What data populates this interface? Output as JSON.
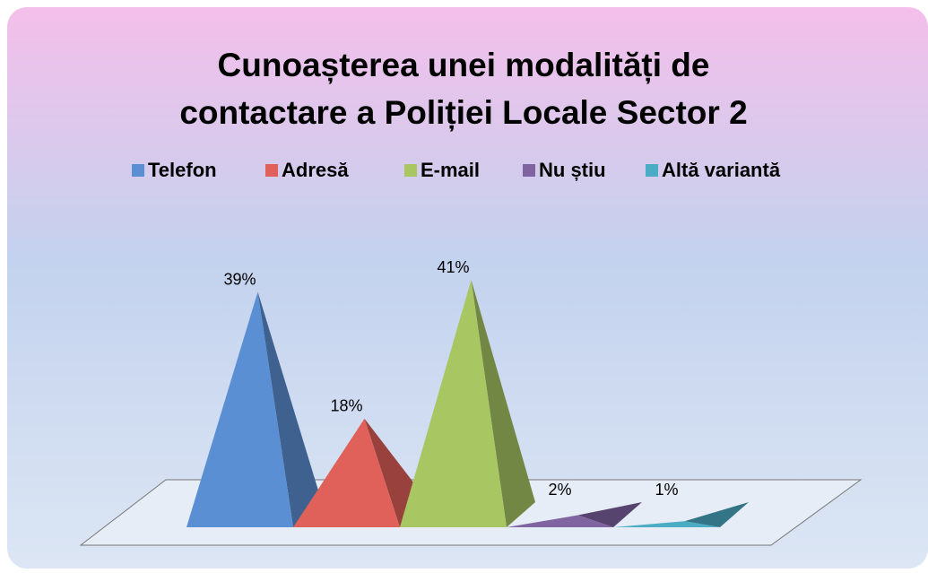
{
  "chart_data": {
    "type": "pyramid",
    "title": [
      "Cunoașterea unei modalități de",
      "contactare a Poliției Locale Sector 2"
    ],
    "series": [
      {
        "name": "Telefon",
        "color": "#5b8fd4",
        "values": [
          39
        ],
        "value_labels": [
          "39%"
        ]
      },
      {
        "name": "Adresă",
        "color": "#e0605a",
        "values": [
          18
        ],
        "value_labels": [
          "18%"
        ]
      },
      {
        "name": "E-mail",
        "color": "#a8c763",
        "values": [
          41
        ],
        "value_labels": [
          "41%"
        ]
      },
      {
        "name": "Nu știu",
        "color": "#8064a2",
        "values": [
          2
        ],
        "value_labels": [
          "2%"
        ]
      },
      {
        "name": "Altă variantă",
        "color": "#4bacc6",
        "values": [
          1
        ],
        "value_labels": [
          "1%"
        ]
      }
    ],
    "legend": "top"
  }
}
